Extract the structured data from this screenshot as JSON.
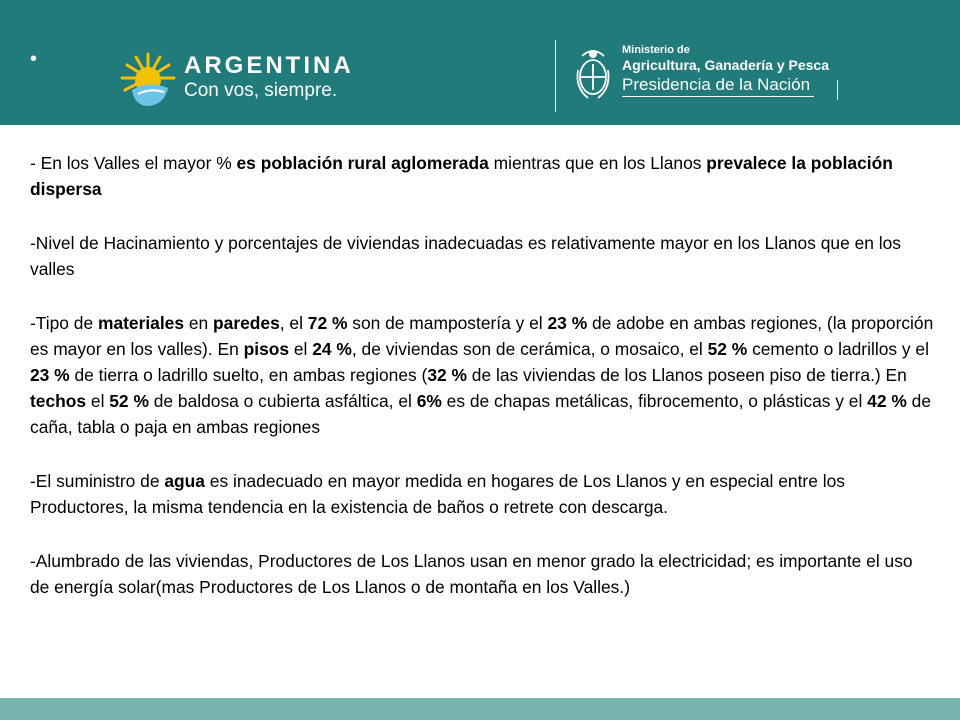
{
  "header": {
    "bullet": "•",
    "argentina_logo": {
      "wordmark": "ARGENTINA",
      "slogan": "Con vos, siempre."
    },
    "ministry_logo": {
      "line1": "Ministerio de",
      "line2": "Agricultura, Ganadería y Pesca",
      "line3": "Presidencia de la Nación"
    },
    "colors": {
      "band": "#227b7b",
      "sun_yellow": "#f2c200",
      "sun_blue": "#6cc4e8"
    }
  },
  "content": {
    "p1": {
      "a": "- En los Valles el mayor % ",
      "b": "es población rural aglomerada",
      "c": " mientras que en los Llanos ",
      "d": "prevalece la población dispersa"
    },
    "p2": {
      "a": "-Nivel de Hacinamiento y porcentajes de viviendas inadecuadas es relativamente mayor en los Llanos que en los valles"
    },
    "p3": {
      "a": "-Tipo de ",
      "b": "materiales",
      "c": " en  ",
      "d": "paredes",
      "e": ",  el ",
      "f": "72 %",
      "g": " son de mampostería y el ",
      "h": "23 %",
      "i": " de adobe en ambas regiones, (la proporción es mayor en los valles). En ",
      "j": "pisos",
      "k": " el ",
      "l": "24 %",
      "m": ", de viviendas son de cerámica, o mosaico, el ",
      "n": "52 %",
      "o": " cemento o ladrillos y el ",
      "p": "23 %",
      "q": " de tierra o ladrillo suelto, en ambas regiones (",
      "r": "32 %",
      "s": " de las viviendas de los Llanos poseen piso de tierra.) En ",
      "t": "techos",
      "u": " el ",
      "v": "52 %",
      "w": "  de baldosa o cubierta asfáltica, el ",
      "x": "6%",
      "y": " es de chapas metálicas, fibrocemento, o  plásticas y el ",
      "z": "42 %",
      "aa": " de caña, tabla o paja en ambas regiones"
    },
    "p4": {
      "a": "-El suministro de ",
      "b": "agua",
      "c": " es inadecuado en mayor medida en hogares de Los Llanos y en especial entre los Productores, la misma tendencia en la existencia de baños o retrete con descarga."
    },
    "p5": {
      "a": "-Alumbrado de las viviendas, Productores de Los Llanos usan en menor grado la electricidad; es importante el uso de energía solar(mas Productores de Los Llanos o de montaña en los Valles.)"
    }
  }
}
